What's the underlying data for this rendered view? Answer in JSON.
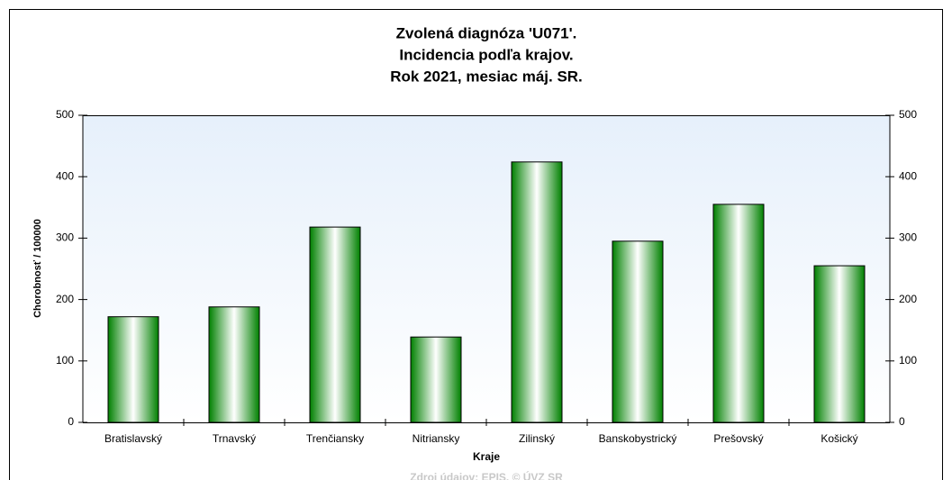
{
  "chart_data": {
    "type": "bar",
    "title": [
      "Zvolená diagnóza 'U071'.",
      "Incidencia podľa krajov.",
      "Rok 2021, mesiac máj. SR."
    ],
    "xlabel": "Kraje",
    "ylabel": "Chorobnosť / 100000",
    "source": "Zdroj údajov: EPIS, © ÚVZ SR",
    "categories": [
      "Bratislavský",
      "Trnavský",
      "Trenčiansky",
      "Nitriansky",
      "Zilinský",
      "Banskobystrický",
      "Prešovský",
      "Košický"
    ],
    "values": [
      172,
      188,
      318,
      139,
      424,
      295,
      355,
      255
    ],
    "color": "#008000",
    "ylim": [
      0,
      500
    ],
    "yticks": [
      0,
      100,
      200,
      300,
      400,
      500
    ],
    "y2lim": [
      0,
      500
    ],
    "y2ticks": [
      0,
      100,
      200,
      300,
      400,
      500
    ],
    "grid": false
  }
}
